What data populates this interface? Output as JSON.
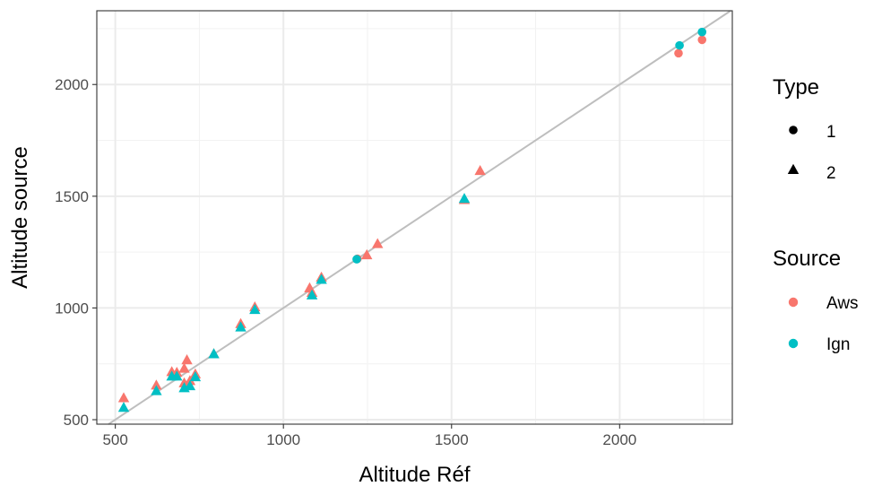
{
  "chart_data": {
    "type": "scatter",
    "title": "",
    "xlabel": "Altitude Réf",
    "ylabel": "Altitude source",
    "xlim": [
      445,
      2335
    ],
    "ylim": [
      480,
      2330
    ],
    "x_ticks": [
      500,
      1000,
      1500,
      2000
    ],
    "y_ticks": [
      500,
      1000,
      1500,
      2000
    ],
    "x_tick_labels": [
      "500",
      "1000",
      "1500",
      "2000"
    ],
    "y_tick_labels": [
      "500",
      "1000",
      "1500",
      "2000"
    ],
    "grid": true,
    "reference_line": {
      "type": "identity",
      "color": "#bebebe"
    },
    "legends": [
      {
        "title": "Type",
        "placement": "right",
        "entries": [
          {
            "label": "1",
            "shape": "circle"
          },
          {
            "label": "2",
            "shape": "triangle"
          }
        ]
      },
      {
        "title": "Source",
        "placement": "right",
        "entries": [
          {
            "label": "Aws",
            "color": "#F8766D"
          },
          {
            "label": "Ign",
            "color": "#00BFC4"
          }
        ]
      }
    ],
    "series": [
      {
        "name": "Aws",
        "color": "#F8766D",
        "points": [
          {
            "x": 2175,
            "y": 2140,
            "type": "1"
          },
          {
            "x": 2245,
            "y": 2200,
            "type": "1"
          },
          {
            "x": 1220,
            "y": 1220,
            "type": "1"
          },
          {
            "x": 525,
            "y": 598,
            "type": "2"
          },
          {
            "x": 622,
            "y": 655,
            "type": "2"
          },
          {
            "x": 668,
            "y": 715,
            "type": "2"
          },
          {
            "x": 683,
            "y": 712,
            "type": "2"
          },
          {
            "x": 705,
            "y": 730,
            "type": "2"
          },
          {
            "x": 713,
            "y": 768,
            "type": "2"
          },
          {
            "x": 705,
            "y": 665,
            "type": "2"
          },
          {
            "x": 722,
            "y": 675,
            "type": "2"
          },
          {
            "x": 738,
            "y": 705,
            "type": "2"
          },
          {
            "x": 793,
            "y": 795,
            "type": "2"
          },
          {
            "x": 873,
            "y": 930,
            "type": "2"
          },
          {
            "x": 915,
            "y": 1005,
            "type": "2"
          },
          {
            "x": 1078,
            "y": 1090,
            "type": "2"
          },
          {
            "x": 1085,
            "y": 1070,
            "type": "2"
          },
          {
            "x": 1113,
            "y": 1138,
            "type": "2"
          },
          {
            "x": 1248,
            "y": 1238,
            "type": "2"
          },
          {
            "x": 1280,
            "y": 1288,
            "type": "2"
          },
          {
            "x": 1538,
            "y": 1485,
            "type": "2"
          },
          {
            "x": 1585,
            "y": 1615,
            "type": "2"
          }
        ]
      },
      {
        "name": "Ign",
        "color": "#00BFC4",
        "points": [
          {
            "x": 2178,
            "y": 2175,
            "type": "1"
          },
          {
            "x": 2245,
            "y": 2235,
            "type": "1"
          },
          {
            "x": 1218,
            "y": 1218,
            "type": "1"
          },
          {
            "x": 525,
            "y": 555,
            "type": "2"
          },
          {
            "x": 622,
            "y": 630,
            "type": "2"
          },
          {
            "x": 668,
            "y": 695,
            "type": "2"
          },
          {
            "x": 683,
            "y": 695,
            "type": "2"
          },
          {
            "x": 705,
            "y": 643,
            "type": "2"
          },
          {
            "x": 722,
            "y": 652,
            "type": "2"
          },
          {
            "x": 738,
            "y": 692,
            "type": "2"
          },
          {
            "x": 793,
            "y": 795,
            "type": "2"
          },
          {
            "x": 873,
            "y": 915,
            "type": "2"
          },
          {
            "x": 915,
            "y": 993,
            "type": "2"
          },
          {
            "x": 1085,
            "y": 1058,
            "type": "2"
          },
          {
            "x": 1113,
            "y": 1128,
            "type": "2"
          },
          {
            "x": 1538,
            "y": 1490,
            "type": "2"
          }
        ]
      }
    ]
  }
}
